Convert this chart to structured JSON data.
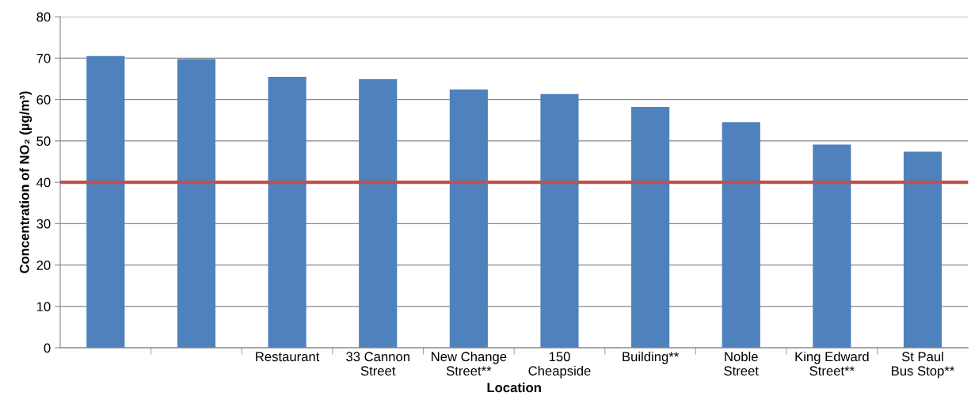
{
  "chart_data": {
    "type": "bar",
    "xlabel": "Location",
    "ylabel": "Concentration of NO₂ (µg/m³)",
    "categories": [
      null,
      null,
      "Restaurant",
      "33 Cannon Street",
      "New Change Street**",
      "150 Cheapside",
      "Building**",
      "Noble Street",
      "King Edward Street**",
      "St Paul Bus Stop**"
    ],
    "values": [
      70.5,
      69.8,
      65.5,
      64.9,
      62.4,
      61.3,
      58.2,
      54.5,
      49.1,
      47.4
    ],
    "color": "#4f81bd",
    "ylim": [
      0,
      80
    ],
    "yticks": [
      0,
      10,
      20,
      30,
      40,
      50,
      60,
      70,
      80
    ],
    "ref_lines": [
      {
        "axis": "y",
        "value": 40,
        "color": "#c0504d"
      }
    ],
    "grid": "y",
    "legend": false
  }
}
